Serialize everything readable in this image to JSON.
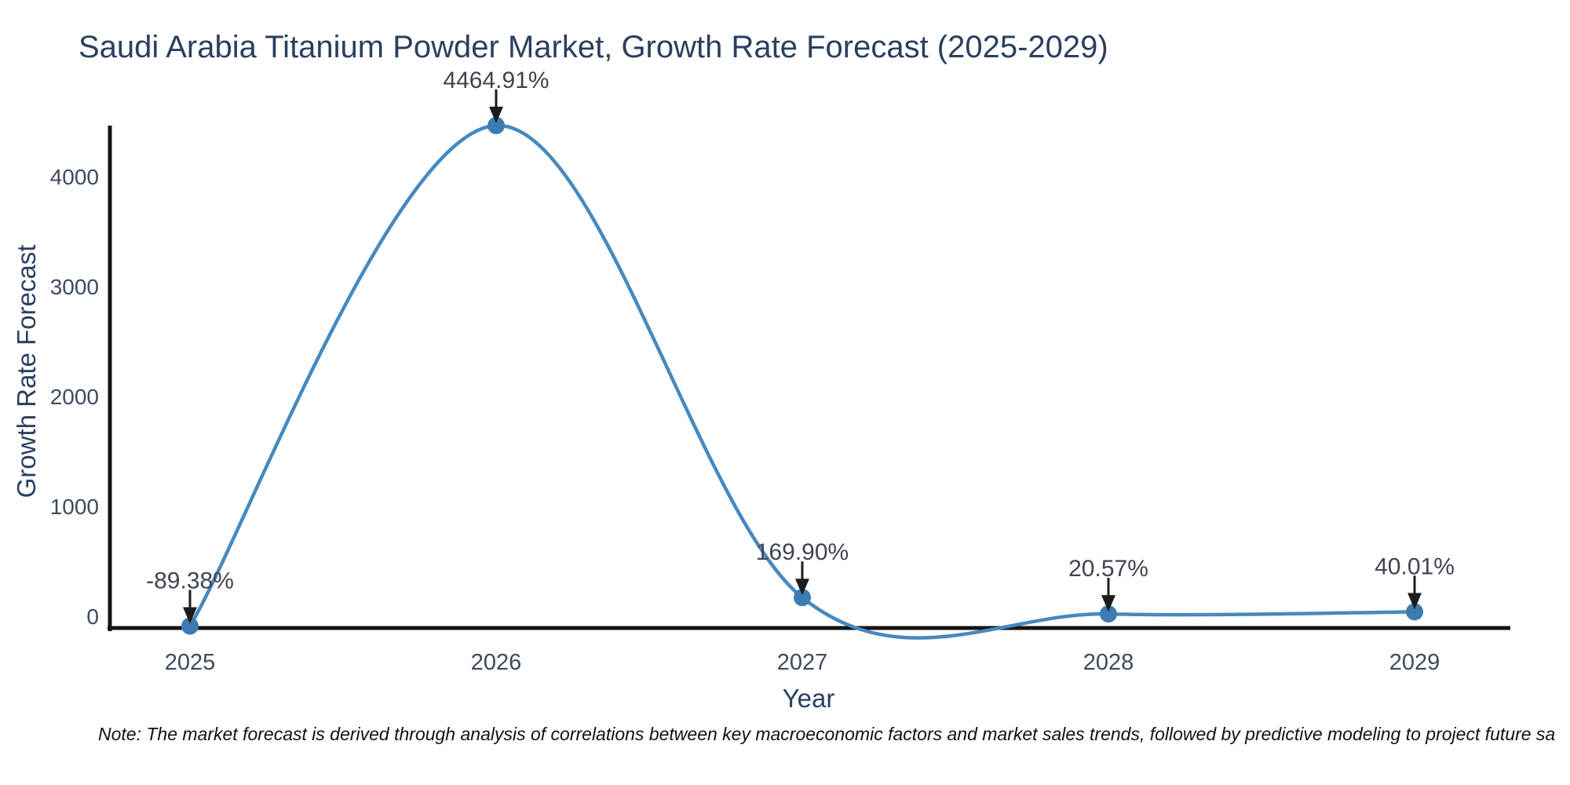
{
  "chart_data": {
    "type": "line",
    "line_shape": "spline",
    "title": "Saudi Arabia Titanium Powder Market, Growth Rate Forecast (2025-2029)",
    "xlabel": "Year",
    "ylabel": "Growth Rate Forecast",
    "categories": [
      "2025",
      "2026",
      "2027",
      "2028",
      "2029"
    ],
    "series": [
      {
        "name": "Growth Rate Forecast",
        "values": [
          -89.38,
          4464.91,
          169.9,
          20.57,
          40.01
        ],
        "point_labels": [
          "-89.38%",
          "4464.91%",
          "169.90%",
          "20.57%",
          "40.01%"
        ]
      }
    ],
    "y_ticks": [
      0,
      1000,
      2000,
      3000,
      4000
    ],
    "ylim": [
      -121,
      4460
    ],
    "grid": false,
    "legend": false,
    "annotations_style": "down-arrow-to-point",
    "colors": {
      "line": "#4689bf",
      "marker": "#3d7cb2",
      "axis_line": "#141414",
      "arrow": "#1c1c1c",
      "annotation_text": "#3f4450",
      "tick_text": "#3c4a60",
      "title_text": "#2a3f5f"
    }
  },
  "note": {
    "text": "Note: The market forecast is derived through analysis of correlations between key macroeconomic factors and market sales trends, followed by predictive modeling to project future sa"
  }
}
